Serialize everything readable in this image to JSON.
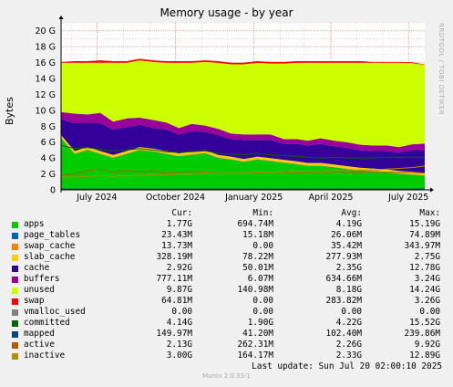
{
  "chart_data": {
    "type": "area",
    "title": "Memory usage - by year",
    "ylabel": "Bytes",
    "side_label": "RRDTOOL / TOBI OETIKER",
    "ylim": [
      0,
      21
    ],
    "yticks": [
      {
        "value": 0,
        "label": "0"
      },
      {
        "value": 2,
        "label": "2 G"
      },
      {
        "value": 4,
        "label": "4 G"
      },
      {
        "value": 6,
        "label": "6 G"
      },
      {
        "value": 8,
        "label": "8 G"
      },
      {
        "value": 10,
        "label": "10 G"
      },
      {
        "value": 12,
        "label": "12 G"
      },
      {
        "value": 14,
        "label": "14 G"
      },
      {
        "value": 16,
        "label": "16 G"
      },
      {
        "value": 18,
        "label": "18 G"
      },
      {
        "value": 20,
        "label": "20 G"
      }
    ],
    "x_range": [
      "2024-05-20",
      "2025-07-20"
    ],
    "xticks": [
      {
        "date": "2024-07-01",
        "label": "July 2024"
      },
      {
        "date": "2024-10-01",
        "label": "October 2024"
      },
      {
        "date": "2025-01-01",
        "label": "January 2025"
      },
      {
        "date": "2025-04-01",
        "label": "April 2025"
      },
      {
        "date": "2025-07-01",
        "label": "July 2025"
      }
    ],
    "grid": true,
    "x": [
      "2024-05-20",
      "2024-06-05",
      "2024-06-20",
      "2024-07-05",
      "2024-07-20",
      "2024-08-05",
      "2024-08-20",
      "2024-09-05",
      "2024-09-20",
      "2024-10-05",
      "2024-10-20",
      "2024-11-05",
      "2024-11-20",
      "2024-12-05",
      "2024-12-20",
      "2025-01-05",
      "2025-01-20",
      "2025-02-05",
      "2025-02-20",
      "2025-03-05",
      "2025-03-20",
      "2025-04-05",
      "2025-04-20",
      "2025-05-05",
      "2025-05-20",
      "2025-06-05",
      "2025-06-20",
      "2025-07-05",
      "2025-07-20"
    ],
    "series": [
      {
        "name": "apps",
        "color": "#00cc00",
        "values": [
          6.5,
          4.5,
          5.0,
          4.5,
          4.0,
          4.5,
          5.0,
          4.8,
          4.5,
          4.2,
          4.4,
          4.6,
          4.0,
          3.8,
          3.5,
          3.8,
          3.6,
          3.4,
          3.2,
          3.0,
          3.0,
          2.8,
          2.6,
          2.4,
          2.3,
          2.2,
          2.0,
          1.9,
          1.8
        ]
      },
      {
        "name": "page_tables",
        "color": "#0066b3",
        "values": [
          0.03,
          0.03,
          0.03,
          0.03,
          0.03,
          0.03,
          0.03,
          0.03,
          0.03,
          0.03,
          0.03,
          0.03,
          0.03,
          0.03,
          0.03,
          0.03,
          0.03,
          0.03,
          0.03,
          0.03,
          0.03,
          0.03,
          0.03,
          0.03,
          0.03,
          0.03,
          0.03,
          0.03,
          0.02
        ]
      },
      {
        "name": "swap_cache",
        "color": "#ff8000",
        "values": [
          0.05,
          0.05,
          0.05,
          0.05,
          0.05,
          0.05,
          0.05,
          0.05,
          0.05,
          0.05,
          0.05,
          0.05,
          0.05,
          0.05,
          0.05,
          0.05,
          0.05,
          0.05,
          0.05,
          0.05,
          0.05,
          0.05,
          0.05,
          0.05,
          0.05,
          0.05,
          0.05,
          0.05,
          0.01
        ]
      },
      {
        "name": "slab_cache",
        "color": "#ffcc00",
        "values": [
          0.3,
          0.3,
          0.3,
          0.3,
          0.3,
          0.3,
          0.3,
          0.3,
          0.3,
          0.3,
          0.3,
          0.3,
          0.3,
          0.3,
          0.3,
          0.3,
          0.3,
          0.3,
          0.3,
          0.3,
          0.3,
          0.3,
          0.3,
          0.3,
          0.3,
          0.3,
          0.3,
          0.3,
          0.3
        ]
      },
      {
        "name": "cache",
        "color": "#330099",
        "values": [
          2.0,
          3.5,
          3.0,
          3.5,
          3.2,
          3.0,
          2.8,
          2.6,
          2.7,
          2.4,
          2.6,
          2.3,
          2.5,
          2.2,
          2.4,
          2.1,
          2.3,
          2.0,
          2.2,
          2.2,
          2.4,
          2.3,
          2.3,
          2.2,
          2.2,
          2.3,
          2.3,
          2.7,
          2.9
        ]
      },
      {
        "name": "buffers",
        "color": "#990099",
        "values": [
          0.9,
          1.2,
          1.1,
          1.3,
          1.0,
          1.1,
          0.9,
          1.0,
          0.9,
          0.8,
          0.9,
          0.8,
          0.8,
          0.7,
          0.7,
          0.7,
          0.7,
          0.6,
          0.6,
          0.6,
          0.7,
          0.7,
          0.7,
          0.7,
          0.7,
          0.7,
          0.7,
          0.75,
          0.78
        ]
      },
      {
        "name": "unused",
        "color": "#ccff00",
        "values": [
          6.2,
          6.4,
          6.5,
          6.3,
          7.4,
          7.0,
          7.2,
          7.3,
          7.5,
          8.2,
          7.7,
          8.0,
          8.3,
          8.7,
          8.8,
          9.0,
          8.9,
          9.5,
          9.6,
          9.8,
          9.5,
          9.8,
          10.0,
          10.3,
          10.4,
          10.4,
          10.6,
          10.2,
          9.9
        ]
      },
      {
        "name": "swap",
        "color": "#ff0000",
        "values": [
          0.1,
          0.2,
          0.2,
          0.3,
          0.2,
          0.2,
          0.2,
          0.2,
          0.2,
          0.2,
          0.2,
          0.2,
          0.2,
          0.2,
          0.2,
          0.2,
          0.2,
          0.2,
          0.2,
          0.2,
          0.2,
          0.2,
          0.2,
          0.2,
          0.1,
          0.1,
          0.1,
          0.1,
          0.06
        ]
      }
    ],
    "lines": [
      {
        "name": "committed",
        "color": "#006600",
        "values": [
          5.6,
          5.2,
          5.3,
          5.1,
          4.9,
          5.0,
          5.2,
          5.0,
          4.8,
          4.7,
          4.8,
          4.9,
          4.6,
          4.5,
          4.4,
          4.6,
          4.4,
          4.3,
          4.2,
          4.1,
          4.0,
          4.1,
          4.0,
          4.0,
          4.0,
          4.1,
          4.1,
          4.1,
          4.1
        ]
      },
      {
        "name": "mapped",
        "color": "#00487d",
        "values": [
          0.1,
          0.1,
          0.1,
          0.1,
          0.1,
          0.1,
          0.1,
          0.1,
          0.1,
          0.1,
          0.1,
          0.1,
          0.1,
          0.1,
          0.1,
          0.1,
          0.1,
          0.1,
          0.1,
          0.1,
          0.1,
          0.1,
          0.1,
          0.1,
          0.1,
          0.1,
          0.1,
          0.1,
          0.15
        ]
      },
      {
        "name": "active",
        "color": "#b35a00",
        "values": [
          1.8,
          2.0,
          2.4,
          2.6,
          2.2,
          2.4,
          2.3,
          2.4,
          2.1,
          2.2,
          2.3,
          2.2,
          2.1,
          2.1,
          2.1,
          2.1,
          2.2,
          2.2,
          2.1,
          2.2,
          2.2,
          2.3,
          2.2,
          2.2,
          2.3,
          2.2,
          2.2,
          2.2,
          2.1
        ]
      },
      {
        "name": "inactive",
        "color": "#b38f00",
        "values": [
          1.6,
          1.6,
          1.7,
          1.8,
          1.7,
          1.8,
          1.8,
          1.9,
          1.9,
          2.0,
          2.0,
          2.1,
          2.1,
          2.1,
          2.1,
          2.2,
          2.2,
          2.3,
          2.3,
          2.3,
          2.3,
          2.4,
          2.4,
          2.5,
          2.5,
          2.6,
          2.7,
          2.8,
          3.0
        ]
      }
    ]
  },
  "legend": {
    "headers": [
      "Cur:",
      "Min:",
      "Avg:",
      "Max:"
    ],
    "rows": [
      {
        "name": "apps",
        "color": "#00cc00",
        "cur": "1.77G",
        "min": "694.74M",
        "avg": "4.19G",
        "max": "15.19G"
      },
      {
        "name": "page_tables",
        "color": "#0066b3",
        "cur": "23.43M",
        "min": "15.18M",
        "avg": "26.06M",
        "max": "74.89M"
      },
      {
        "name": "swap_cache",
        "color": "#ff8000",
        "cur": "13.73M",
        "min": "0.00",
        "avg": "35.42M",
        "max": "343.97M"
      },
      {
        "name": "slab_cache",
        "color": "#ffcc00",
        "cur": "328.19M",
        "min": "78.22M",
        "avg": "277.93M",
        "max": "2.75G"
      },
      {
        "name": "cache",
        "color": "#330099",
        "cur": "2.92G",
        "min": "50.01M",
        "avg": "2.35G",
        "max": "12.78G"
      },
      {
        "name": "buffers",
        "color": "#990099",
        "cur": "777.11M",
        "min": "6.07M",
        "avg": "634.66M",
        "max": "3.24G"
      },
      {
        "name": "unused",
        "color": "#ccff00",
        "cur": "9.87G",
        "min": "140.98M",
        "avg": "8.18G",
        "max": "14.24G"
      },
      {
        "name": "swap",
        "color": "#ff0000",
        "cur": "64.81M",
        "min": "0.00",
        "avg": "283.82M",
        "max": "3.26G"
      },
      {
        "name": "vmalloc_used",
        "color": "#808080",
        "cur": "0.00",
        "min": "0.00",
        "avg": "0.00",
        "max": "0.00"
      },
      {
        "name": "committed",
        "color": "#006600",
        "cur": "4.14G",
        "min": "1.90G",
        "avg": "4.22G",
        "max": "15.52G"
      },
      {
        "name": "mapped",
        "color": "#00487d",
        "cur": "149.97M",
        "min": "41.20M",
        "avg": "102.40M",
        "max": "239.86M"
      },
      {
        "name": "active",
        "color": "#b35a00",
        "cur": "2.13G",
        "min": "262.31M",
        "avg": "2.26G",
        "max": "9.92G"
      },
      {
        "name": "inactive",
        "color": "#b38f00",
        "cur": "3.00G",
        "min": "164.17M",
        "avg": "2.33G",
        "max": "12.89G"
      }
    ]
  },
  "footer": {
    "last_update": "Last update:  Sun Jul 20 02:00:10 2025",
    "version": "Munin 2.0.33-1"
  }
}
